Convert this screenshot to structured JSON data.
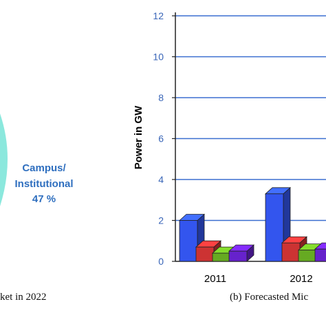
{
  "pie_panel": {
    "slice_label_line1": "Campus/",
    "slice_label_line2": "Institutional",
    "slice_percent": "47 %",
    "slice_value": 47,
    "slice_color": "#8be8dd",
    "label_color": "#2f6fbf",
    "caption": "ket in 2022"
  },
  "bar_panel": {
    "caption": "(b) Forecasted Mic"
  },
  "chart_data": {
    "type": "bar",
    "ylabel": "Power in GW",
    "xlabel": "",
    "ylim": [
      0,
      12
    ],
    "yticks": [
      "0",
      "2",
      "4",
      "6",
      "8",
      "10",
      "12"
    ],
    "grid": true,
    "categories": [
      "2011",
      "2012"
    ],
    "series": [
      {
        "color": "#3355ee",
        "values": [
          2.0,
          3.3
        ]
      },
      {
        "color": "#cc3333",
        "values": [
          0.7,
          0.9
        ]
      },
      {
        "color": "#66aa22",
        "values": [
          0.4,
          0.55
        ]
      },
      {
        "color": "#6622cc",
        "values": [
          0.5,
          0.6
        ]
      }
    ]
  }
}
